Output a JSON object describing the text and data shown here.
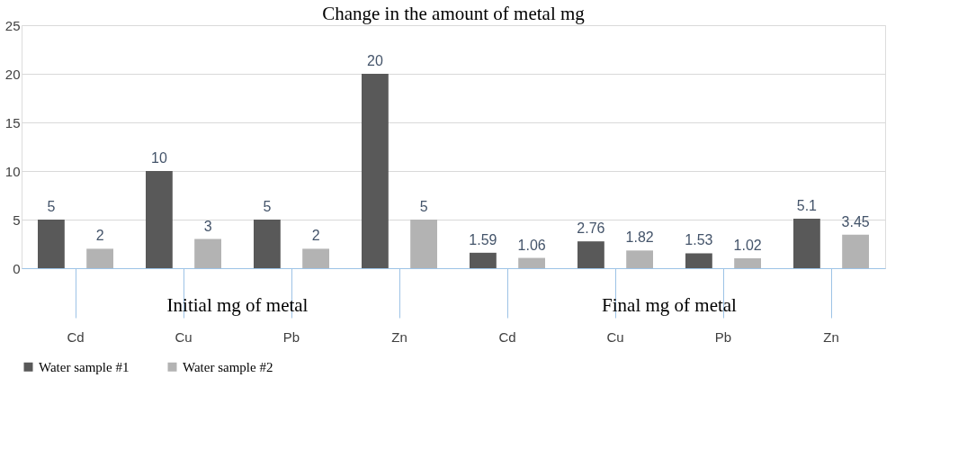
{
  "chart_data": {
    "type": "bar",
    "title": "Change in the amount of metal mg",
    "categories": [
      "Cd",
      "Cu",
      "Pb",
      "Zn",
      "Cd",
      "Cu",
      "Pb",
      "Zn"
    ],
    "series": [
      {
        "name": "Water sample #1",
        "color": "#595959",
        "values": [
          5,
          10,
          5,
          20,
          1.59,
          2.76,
          1.53,
          5.1
        ]
      },
      {
        "name": "Water sample #2",
        "color": "#b3b3b3",
        "values": [
          2,
          3,
          2,
          5,
          1.06,
          1.82,
          1.02,
          3.45
        ]
      }
    ],
    "annotations": [
      "Initial mg of metal",
      "Final mg of metal"
    ],
    "ylim": [
      0,
      25
    ],
    "yticks": [
      0,
      5,
      10,
      15,
      20,
      25
    ],
    "grid": "y",
    "legend": "bottom",
    "data_labels": true
  }
}
